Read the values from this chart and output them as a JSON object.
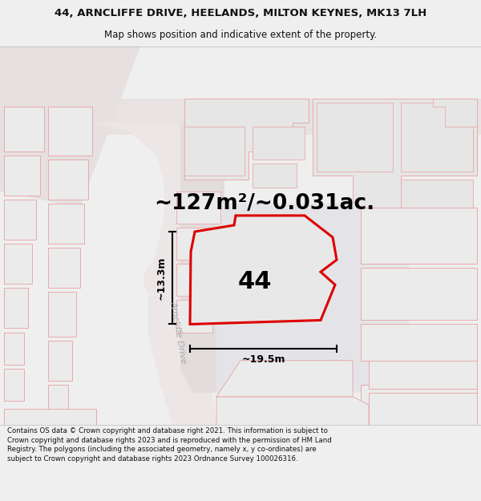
{
  "title_line1": "44, ARNCLIFFE DRIVE, HEELANDS, MILTON KEYNES, MK13 7LH",
  "title_line2": "Map shows position and indicative extent of the property.",
  "area_text": "~127m²/~0.031ac.",
  "property_number": "44",
  "dim_width": "~19.5m",
  "dim_height": "~13.3m",
  "street_label": "Arncliffe Drive",
  "footer_text": "Contains OS data © Crown copyright and database right 2021. This information is subject to Crown copyright and database rights 2023 and is reproduced with the permission of HM Land Registry. The polygons (including the associated geometry, namely x, y co-ordinates) are subject to Crown copyright and database rights 2023 Ordnance Survey 100026316.",
  "map_bg": "#f2eeee",
  "plot_fill": "#e8e8e8",
  "plot_stroke": "#dd0000",
  "bldg_stroke": "#e8aaaa",
  "bldg_fill": "#ebebeb",
  "road_fill": "#e8e0e0",
  "header_bg": "#f0efef",
  "footer_bg": "#ffffff",
  "gray_road_stroke": "#ccbbbb",
  "parcel_fill": "#e4e4e8"
}
